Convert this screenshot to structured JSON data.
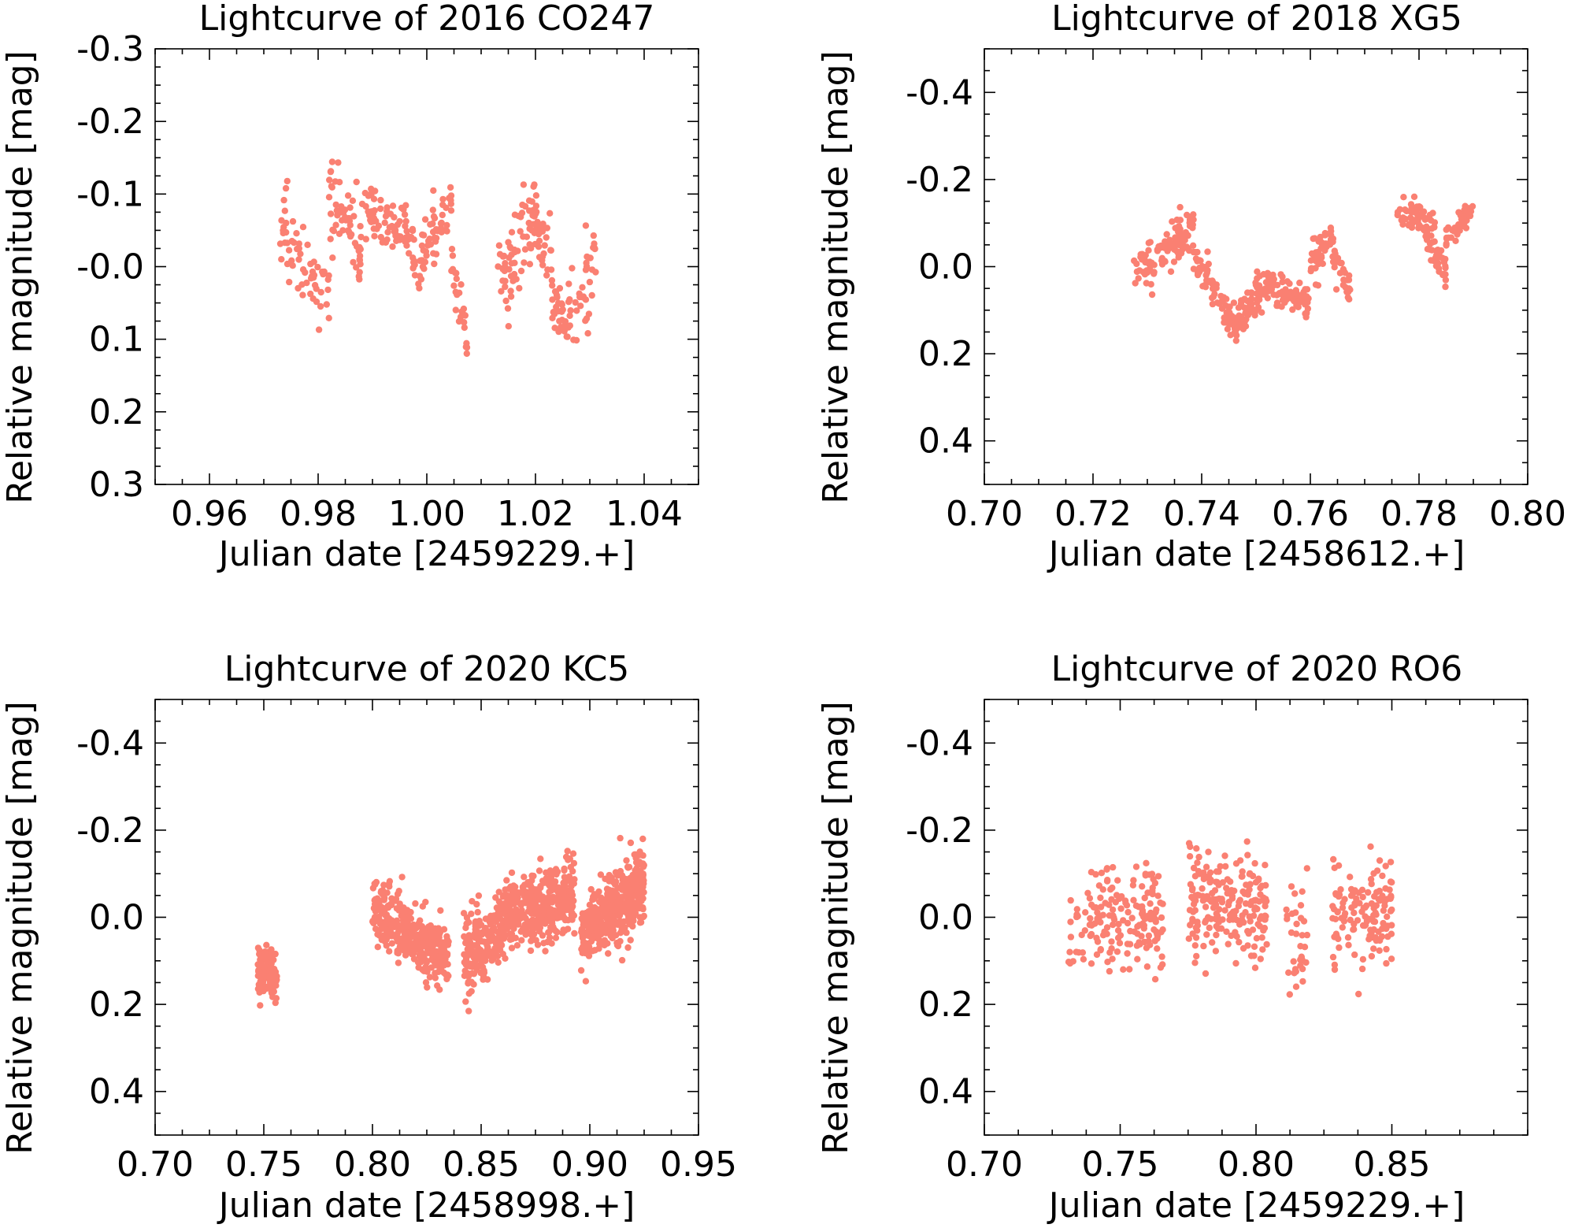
{
  "figure": {
    "point_color": "#fa8072"
  },
  "chart_data": [
    {
      "id": "p1",
      "type": "scatter",
      "title": "Lightcurve of 2016 CO247",
      "xlabel": "Julian date [2459229.+]",
      "ylabel": "Relative magnitude [mag]",
      "xlim": [
        0.95,
        1.05
      ],
      "ylim": [
        0.3,
        -0.3
      ],
      "y_inverted": true,
      "xticks": [
        0.96,
        0.98,
        1.0,
        1.02,
        1.04
      ],
      "xtick_labels": [
        "0.96",
        "0.98",
        "1.00",
        "1.02",
        "1.04"
      ],
      "yticks": [
        -0.3,
        -0.2,
        -0.1,
        0.0,
        0.1,
        0.2,
        0.3
      ],
      "ytick_labels": [
        "-0.3",
        "-0.2",
        "-0.1",
        "-0.0",
        "0.1",
        "0.2",
        "0.3"
      ],
      "grid": false,
      "segments": [
        [
          0.973,
          0.982,
          -0.06,
          0.06,
          0.05,
          60
        ],
        [
          0.982,
          0.988,
          -0.1,
          -0.02,
          0.04,
          60
        ],
        [
          0.988,
          0.996,
          -0.08,
          -0.05,
          0.03,
          60
        ],
        [
          0.996,
          0.999,
          -0.05,
          0.03,
          0.03,
          30
        ],
        [
          0.999,
          1.0045,
          -0.02,
          -0.08,
          0.03,
          50
        ],
        [
          1.0045,
          1.0075,
          0.0,
          0.1,
          0.03,
          25
        ],
        [
          1.013,
          1.019,
          0.02,
          -0.06,
          0.05,
          55
        ],
        [
          1.019,
          1.023,
          -0.08,
          0.0,
          0.04,
          40
        ],
        [
          1.023,
          1.026,
          0.03,
          0.1,
          0.03,
          30
        ],
        [
          1.026,
          1.0315,
          0.08,
          -0.01,
          0.05,
          40
        ]
      ]
    },
    {
      "id": "p2",
      "type": "scatter",
      "title": "Lightcurve of 2018 XG5",
      "xlabel": "Julian date [2458612.+]",
      "ylabel": "Relative magnitude [mag]",
      "xlim": [
        0.7,
        0.8
      ],
      "ylim": [
        0.5,
        -0.5
      ],
      "y_inverted": true,
      "xticks": [
        0.7,
        0.72,
        0.74,
        0.76,
        0.78,
        0.8
      ],
      "xtick_labels": [
        "0.70",
        "0.72",
        "0.74",
        "0.76",
        "0.78",
        "0.80"
      ],
      "yticks": [
        -0.4,
        -0.2,
        0.0,
        0.2,
        0.4
      ],
      "ytick_labels": [
        "-0.4",
        "-0.2",
        "0.0",
        "0.2",
        "0.4"
      ],
      "grid": false,
      "segments": [
        [
          0.7275,
          0.733,
          0.0,
          -0.02,
          0.05,
          40
        ],
        [
          0.733,
          0.7385,
          -0.02,
          -0.1,
          0.04,
          60
        ],
        [
          0.7385,
          0.7465,
          -0.02,
          0.14,
          0.04,
          80
        ],
        [
          0.7465,
          0.7525,
          0.12,
          0.03,
          0.04,
          70
        ],
        [
          0.7525,
          0.76,
          0.04,
          0.09,
          0.04,
          70
        ],
        [
          0.76,
          0.764,
          0.0,
          -0.06,
          0.04,
          50
        ],
        [
          0.764,
          0.7675,
          -0.03,
          0.07,
          0.04,
          30
        ],
        [
          0.776,
          0.783,
          -0.13,
          -0.1,
          0.03,
          55
        ],
        [
          0.781,
          0.785,
          -0.08,
          0.02,
          0.03,
          35
        ],
        [
          0.785,
          0.79,
          -0.05,
          -0.15,
          0.03,
          45
        ]
      ]
    },
    {
      "id": "p3",
      "type": "scatter",
      "title": "Lightcurve of 2020 KC5",
      "xlabel": "Julian date [2458998.+]",
      "ylabel": "Relative magnitude [mag]",
      "xlim": [
        0.7,
        0.95
      ],
      "ylim": [
        0.5,
        -0.5
      ],
      "y_inverted": true,
      "xticks": [
        0.7,
        0.75,
        0.8,
        0.85,
        0.9,
        0.95
      ],
      "xtick_labels": [
        "0.70",
        "0.75",
        "0.80",
        "0.85",
        "0.90",
        "0.95"
      ],
      "yticks": [
        -0.4,
        -0.2,
        0.0,
        0.2,
        0.4
      ],
      "ytick_labels": [
        "-0.4",
        "-0.2",
        "0.0",
        "0.2",
        "0.4"
      ],
      "grid": false,
      "segments": [
        [
          0.747,
          0.756,
          0.13,
          0.13,
          0.05,
          120
        ],
        [
          0.8,
          0.835,
          -0.02,
          0.1,
          0.06,
          360
        ],
        [
          0.842,
          0.86,
          0.1,
          0.02,
          0.07,
          200
        ],
        [
          0.86,
          0.893,
          0.0,
          -0.05,
          0.07,
          420
        ],
        [
          0.896,
          0.925,
          0.05,
          -0.08,
          0.07,
          420
        ]
      ]
    },
    {
      "id": "p4",
      "type": "scatter",
      "title": "Lightcurve of 2020 RO6",
      "xlabel": "Julian date [2459229.+]",
      "ylabel": "Relative magnitude [mag]",
      "xlim": [
        0.7,
        0.9
      ],
      "ylim": [
        0.5,
        -0.5
      ],
      "y_inverted": true,
      "xticks": [
        0.7,
        0.75,
        0.8,
        0.85
      ],
      "xtick_labels": [
        "0.70",
        "0.75",
        "0.80",
        "0.85"
      ],
      "yticks": [
        -0.4,
        -0.2,
        0.0,
        0.2,
        0.4
      ],
      "ytick_labels": [
        "-0.4",
        "-0.2",
        "0.0",
        "0.2",
        "0.4"
      ],
      "grid": false,
      "segments": [
        [
          0.731,
          0.766,
          0.0,
          0.0,
          0.1,
          170
        ],
        [
          0.775,
          0.804,
          -0.03,
          -0.03,
          0.1,
          210
        ],
        [
          0.811,
          0.819,
          0.05,
          0.05,
          0.1,
          35
        ],
        [
          0.828,
          0.85,
          0.0,
          0.0,
          0.09,
          130
        ]
      ]
    }
  ]
}
